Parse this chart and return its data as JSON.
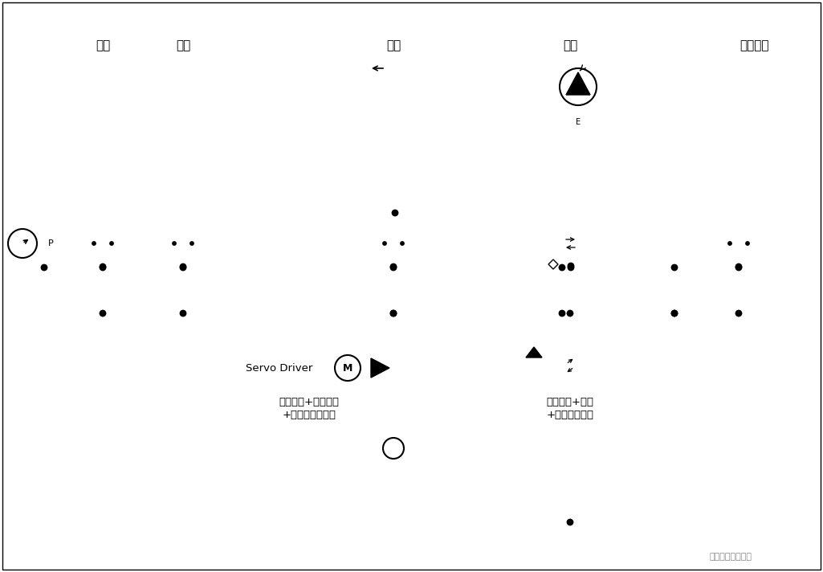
{
  "bg_color": "#ffffff",
  "labels": {
    "suomo": "锁模",
    "sheyi": "射移",
    "shejiao": "射胶",
    "rongjiao": "蚶胶",
    "dingzhen": "顶针油缸",
    "servo_text1": "伺服驱动+伺服电机",
    "servo_text2": "+变速驱动叶片泵",
    "system_text1": "系统卸荷+加载",
    "system_text2": "+保压特殊回路",
    "servo_driver": "Servo Driver",
    "watermark": "别易亏十佰业机电"
  },
  "figsize": [
    10.25,
    7.12
  ],
  "dpi": 100
}
